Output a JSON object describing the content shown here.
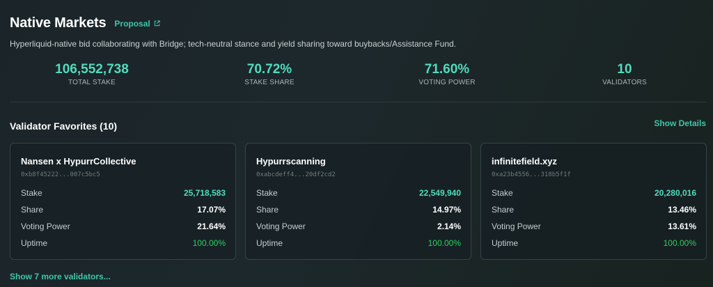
{
  "header": {
    "title": "Native Markets",
    "proposal_label": "Proposal",
    "description": "Hyperliquid-native bid collaborating with Bridge; tech-neutral stance and yield sharing toward buybacks/Assistance Fund."
  },
  "stats": [
    {
      "value": "106,552,738",
      "label": "TOTAL STAKE"
    },
    {
      "value": "70.72%",
      "label": "STAKE SHARE"
    },
    {
      "value": "71.60%",
      "label": "VOTING POWER"
    },
    {
      "value": "10",
      "label": "VALIDATORS"
    }
  ],
  "favorites": {
    "title": "Validator Favorites (10)",
    "show_details_label": "Show Details",
    "row_labels": {
      "stake": "Stake",
      "share": "Share",
      "voting_power": "Voting Power",
      "uptime": "Uptime"
    },
    "cards": [
      {
        "name": "Nansen x HypurrCollective",
        "address": "0xb8f45222...007c5bc5",
        "stake": "25,718,583",
        "share": "17.07%",
        "voting_power": "21.64%",
        "uptime": "100.00%"
      },
      {
        "name": "Hypurrscanning",
        "address": "0xabcdeff4...20df2cd2",
        "stake": "22,549,940",
        "share": "14.97%",
        "voting_power": "2.14%",
        "uptime": "100.00%"
      },
      {
        "name": "infinitefield.xyz",
        "address": "0xa23b4556...318b5f1f",
        "stake": "20,280,016",
        "share": "13.46%",
        "voting_power": "13.61%",
        "uptime": "100.00%"
      }
    ],
    "show_more_label": "Show 7 more validators..."
  },
  "colors": {
    "background": "#1a2428",
    "accent": "#3ec6a8",
    "stat_value": "#52dbbd",
    "uptime_green": "#2fcf63"
  },
  "icons": {
    "proposal_link": "external-link-icon"
  }
}
